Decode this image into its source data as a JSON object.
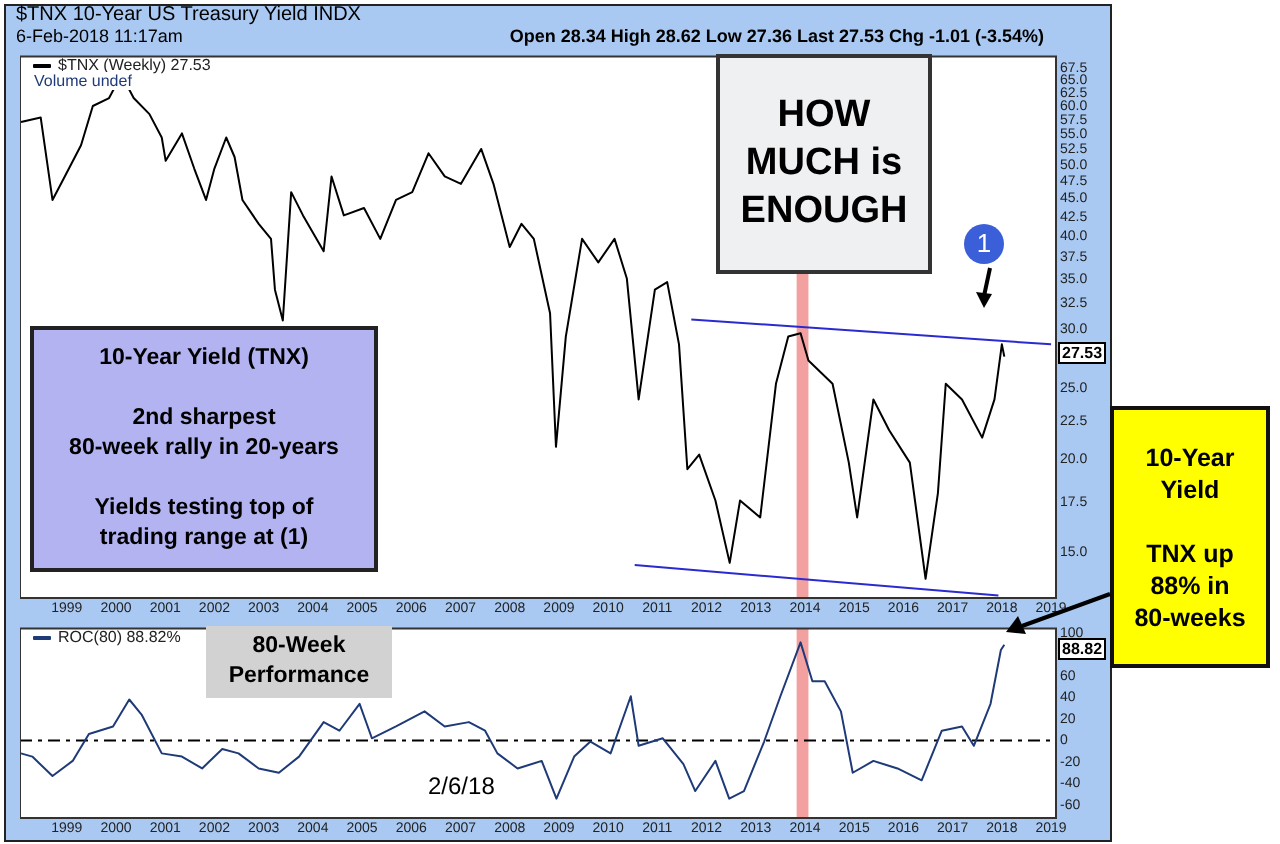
{
  "chart_data": [
    {
      "type": "line",
      "title": "$TNX 10-Year US Treasury Yield INDX",
      "log": true,
      "legend": "top left",
      "annotations": [
        "6-Feb-2018 11:17am",
        "Open 28.34 High 28.62 Low 27.36 Last 27.53 Chg -1.01 (-3.54%)",
        "Volume undef",
        "10-Year Yield (TNX)\n\n2nd sharpest\n80-week rally in 20-years\n\nYields testing top of\ntrading range at (1)",
        "HOW MUCH is ENOUGH",
        "1",
        "10-Year Yield\n\nTNX up\n88% in\n80-weeks",
        "27.53"
      ],
      "xlim": [
        1998.05,
        2019.1
      ],
      "xticks": [
        1999,
        2000,
        2001,
        2002,
        2003,
        2004,
        2005,
        2006,
        2007,
        2008,
        2009,
        2010,
        2011,
        2012,
        2013,
        2014,
        2015,
        2016,
        2017,
        2018,
        2019
      ],
      "ylim": [
        13,
        70
      ],
      "yticks": [
        {
          "value": 15,
          "label": "15.0"
        },
        {
          "value": 17.5,
          "label": "17.5"
        },
        {
          "value": 20,
          "label": "20.0"
        },
        {
          "value": 22.5,
          "label": "22.5"
        },
        {
          "value": 25,
          "label": "25.0"
        },
        {
          "value": 30,
          "label": "30.0"
        },
        {
          "value": 32.5,
          "label": "32.5"
        },
        {
          "value": 35,
          "label": "35.0"
        },
        {
          "value": 37.5,
          "label": "37.5"
        },
        {
          "value": 40,
          "label": "40.0"
        },
        {
          "value": 42.5,
          "label": "42.5"
        },
        {
          "value": 45,
          "label": "45.0"
        },
        {
          "value": 47.5,
          "label": "47.5"
        },
        {
          "value": 50,
          "label": "50.0"
        },
        {
          "value": 52.5,
          "label": "52.5"
        },
        {
          "value": 55,
          "label": "55.0"
        },
        {
          "value": 57.5,
          "label": "57.5"
        },
        {
          "value": 60,
          "label": "60.0"
        },
        {
          "value": 62.5,
          "label": "62.5"
        },
        {
          "value": 65,
          "label": "65.0"
        },
        {
          "value": 67.5,
          "label": "67.5"
        }
      ],
      "bands": [
        {
          "axis": "x",
          "from": 2013.83,
          "to": 2014.07,
          "color": "#f2a0a0"
        }
      ],
      "series": [
        {
          "name": "$TNX (Weekly) 27.53",
          "color": "#000000",
          "x": [
            1998.07,
            1998.47,
            1998.71,
            1998.96,
            1999.29,
            1999.53,
            1999.86,
            2000.11,
            2000.36,
            2000.68,
            2000.93,
            2001.01,
            2001.34,
            2001.59,
            2001.83,
            2002.0,
            2002.24,
            2002.41,
            2002.57,
            2002.9,
            2003.15,
            2003.23,
            2003.39,
            2003.56,
            2003.8,
            2004.22,
            2004.38,
            2004.63,
            2005.04,
            2005.37,
            2005.69,
            2006.02,
            2006.35,
            2006.68,
            2007.01,
            2007.42,
            2007.67,
            2008.0,
            2008.24,
            2008.49,
            2008.82,
            2008.94,
            2009.14,
            2009.47,
            2009.8,
            2010.13,
            2010.38,
            2010.62,
            2010.95,
            2011.2,
            2011.44,
            2011.61,
            2011.85,
            2012.18,
            2012.47,
            2012.68,
            2013.09,
            2013.41,
            2013.66,
            2013.91,
            2014.07,
            2014.56,
            2014.89,
            2015.06,
            2015.39,
            2015.71,
            2016.13,
            2016.45,
            2016.7,
            2016.86,
            2017.19,
            2017.6,
            2017.85,
            2018.0,
            2018.05
          ],
          "values": [
            57.1,
            57.9,
            44.8,
            48.2,
            53.1,
            60.0,
            61.5,
            66.1,
            61.5,
            58.5,
            54.4,
            50.6,
            55.1,
            49.4,
            44.8,
            49.4,
            54.4,
            51.2,
            44.8,
            41.6,
            39.7,
            33.9,
            30.8,
            45.9,
            42.7,
            38.2,
            48.2,
            42.7,
            43.7,
            39.7,
            44.8,
            45.9,
            51.8,
            48.2,
            47.1,
            52.5,
            47.1,
            38.7,
            41.6,
            39.7,
            31.5,
            20.8,
            29.3,
            39.7,
            36.9,
            39.7,
            35.1,
            24.1,
            33.9,
            34.7,
            28.6,
            19.4,
            20.3,
            17.6,
            14.5,
            17.6,
            16.7,
            25.3,
            29.3,
            29.6,
            27.2,
            25.3,
            19.8,
            16.7,
            24.1,
            21.9,
            19.8,
            13.8,
            18.0,
            25.3,
            24.1,
            21.4,
            24.1,
            28.6,
            27.53
          ]
        },
        {
          "type": "line",
          "color": "#2a2ad0",
          "x": [
            2011.69,
            2019.0
          ],
          "values": [
            30.9,
            28.6
          ]
        },
        {
          "type": "line",
          "color": "#2a2ad0",
          "x": [
            2010.54,
            2017.93
          ],
          "values": [
            14.4,
            13.1
          ]
        }
      ]
    },
    {
      "type": "line",
      "legend": "top left",
      "annotations": [
        "80-Week Performance",
        "2/6/18",
        "88.82"
      ],
      "xlim": [
        1998.05,
        2019.1
      ],
      "xticks": [
        1999,
        2000,
        2001,
        2002,
        2003,
        2004,
        2005,
        2006,
        2007,
        2008,
        2009,
        2010,
        2011,
        2012,
        2013,
        2014,
        2015,
        2016,
        2017,
        2018,
        2019
      ],
      "ylim": [
        -72,
        104
      ],
      "yticks": [
        -60,
        -40,
        -20,
        0,
        20,
        40,
        60,
        100
      ],
      "bands": [
        {
          "axis": "x",
          "from": 2013.83,
          "to": 2014.07,
          "color": "#f2a0a0"
        }
      ],
      "ref_lines": [
        {
          "axis": "y",
          "value": 0,
          "color": "#000000",
          "line_style": "dashed"
        }
      ],
      "series": [
        {
          "name": "ROC(80) 88.82%",
          "color": "#1f3a78",
          "x": [
            1998.07,
            1998.3,
            1998.71,
            1999.12,
            1999.45,
            1999.94,
            2000.27,
            2000.52,
            2000.93,
            2001.34,
            2001.75,
            2002.16,
            2002.49,
            2002.9,
            2003.31,
            2003.72,
            2004.22,
            2004.54,
            2004.95,
            2005.2,
            2005.69,
            2006.27,
            2006.68,
            2007.17,
            2007.5,
            2007.75,
            2008.16,
            2008.65,
            2008.95,
            2009.31,
            2009.64,
            2010.05,
            2010.46,
            2010.62,
            2011.11,
            2011.53,
            2011.77,
            2012.18,
            2012.46,
            2012.76,
            2013.17,
            2013.5,
            2013.91,
            2014.15,
            2014.4,
            2014.73,
            2014.97,
            2015.39,
            2015.88,
            2016.37,
            2016.78,
            2017.19,
            2017.43,
            2017.77,
            2017.98,
            2018.05
          ],
          "values": [
            -12,
            -15,
            -33,
            -19,
            6,
            13,
            38,
            24,
            -12,
            -15,
            -26,
            -8,
            -12,
            -26,
            -30,
            -15,
            17,
            9,
            34,
            2,
            13,
            27,
            13,
            17,
            9,
            -12,
            -26,
            -19,
            -54,
            -15,
            -1,
            -12,
            41,
            -5,
            2,
            -22,
            -47,
            -19,
            -54,
            -47,
            -1,
            41,
            91,
            55,
            55,
            27,
            -30,
            -19,
            -26,
            -37,
            9,
            13,
            -5,
            34,
            84,
            88.82
          ]
        }
      ]
    }
  ]
}
